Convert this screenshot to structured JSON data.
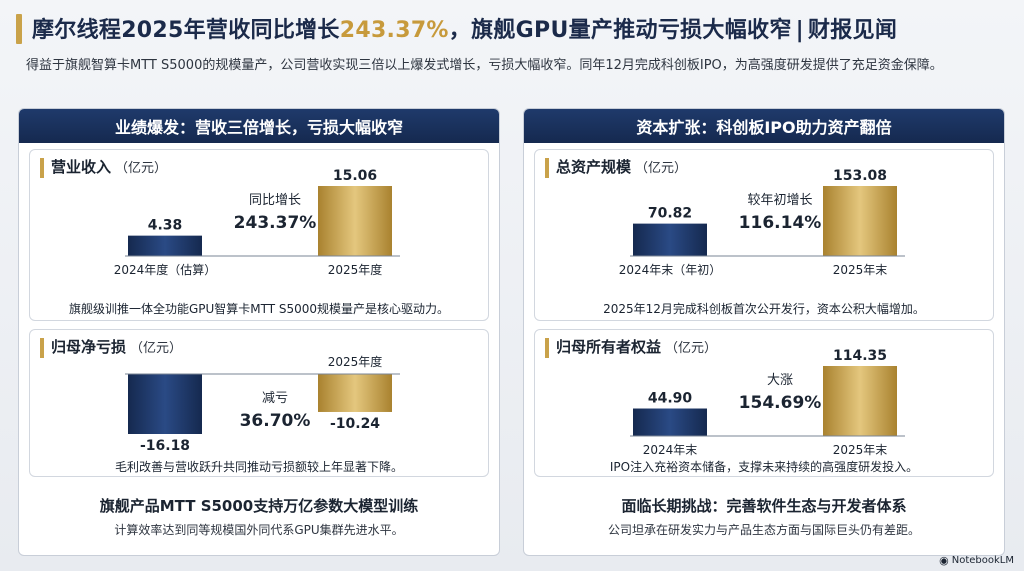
{
  "title": {
    "part1": "摩尔线程2025年营收同比增长",
    "highlight": "243.37%",
    "part2": "，旗舰GPU量产推动亏损大幅收窄",
    "separator": "|",
    "part3": "财报见闻"
  },
  "subtitle": "得益于旗舰智算卡MTT S5000的规模量产，公司营收实现三倍以上爆发式增长，亏损大幅收窄。同年12月完成科创板IPO，为高强度研发提供了充足资金保障。",
  "left_panel": {
    "header": "业绩爆发：营收三倍增长，亏损大幅收窄",
    "bottom_title": "旗舰产品MTT S5000支持万亿参数大模型训练",
    "bottom_sub": "计算效率达到同等规模国外同代系GPU集群先进水平。"
  },
  "right_panel": {
    "header": "资本扩张：科创板IPO助力资产翻倍",
    "bottom_title": "面临长期挑战：完善软件生态与开发者体系",
    "bottom_sub": "公司坦承在研发实力与产品生态方面与国际巨头仍有差距。"
  },
  "colors": {
    "navy": "#1f3a6b",
    "gold": "#c9a24a",
    "accent_text": "#c79a3c"
  },
  "footer": {
    "logo": "NotebookLM"
  },
  "chart_data": [
    {
      "id": "revenue",
      "type": "bar",
      "title": "营业收入",
      "unit": "（亿元）",
      "categories": [
        "2024年度（估算）",
        "2025年度"
      ],
      "values": [
        4.38,
        15.06
      ],
      "value_labels": [
        "4.38",
        "15.06"
      ],
      "annotation_label": "同比增长",
      "annotation_value": "243.37%",
      "note": "旗舰级训推一体全功能GPU智算卡MTT S5000规模量产是核心驱动力。"
    },
    {
      "id": "net_loss",
      "type": "bar",
      "title": "归母净亏损",
      "unit": "（亿元）",
      "categories": [
        "",
        "2025年度"
      ],
      "values": [
        -16.18,
        -10.24
      ],
      "value_labels": [
        "-16.18",
        "-10.24"
      ],
      "annotation_label": "减亏",
      "annotation_value": "36.70%",
      "note": "毛利改善与营收跃升共同推动亏损额较上年显著下降。"
    },
    {
      "id": "total_assets",
      "type": "bar",
      "title": "总资产规模",
      "unit": "（亿元）",
      "categories": [
        "2024年末（年初）",
        "2025年末"
      ],
      "values": [
        70.82,
        153.08
      ],
      "value_labels": [
        "70.82",
        "153.08"
      ],
      "annotation_label": "较年初增长",
      "annotation_value": "116.14%",
      "note": "2025年12月完成科创板首次公开发行，资本公积大幅增加。"
    },
    {
      "id": "equity",
      "type": "bar",
      "title": "归母所有者权益",
      "unit": "（亿元）",
      "categories": [
        "2024年末",
        "2025年末"
      ],
      "values": [
        44.9,
        114.35
      ],
      "value_labels": [
        "44.90",
        "114.35"
      ],
      "annotation_label": "大涨",
      "annotation_value": "154.69%",
      "note": "IPO注入充裕资本储备，支撑未来持续的高强度研发投入。"
    }
  ]
}
